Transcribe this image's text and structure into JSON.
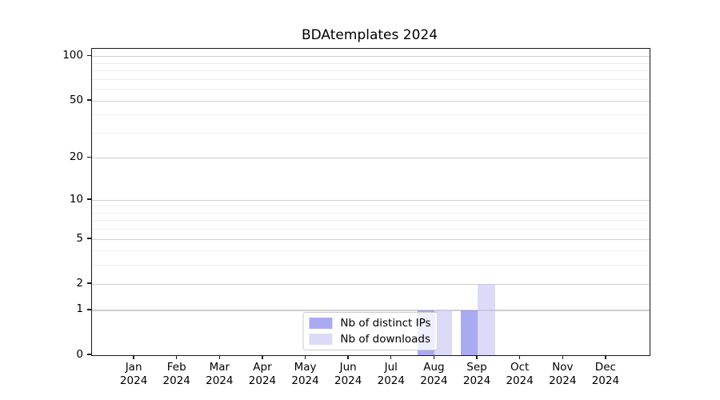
{
  "title": "BDAtemplates 2024",
  "chart_data": {
    "type": "bar",
    "title": "BDAtemplates 2024",
    "categories": [
      "Jan 2024",
      "Feb 2024",
      "Mar 2024",
      "Apr 2024",
      "May 2024",
      "Jun 2024",
      "Jul 2024",
      "Aug 2024",
      "Sep 2024",
      "Oct 2024",
      "Nov 2024",
      "Dec 2024"
    ],
    "x_tick_months": [
      "Jan",
      "Feb",
      "Mar",
      "Apr",
      "May",
      "Jun",
      "Jul",
      "Aug",
      "Sep",
      "Oct",
      "Nov",
      "Dec"
    ],
    "x_tick_year": "2024",
    "series": [
      {
        "name": "Nb of distinct IPs",
        "color": "rgba(129,129,238,0.68)",
        "values": [
          0,
          0,
          0,
          0,
          0,
          0,
          0,
          1,
          1,
          0,
          0,
          0
        ]
      },
      {
        "name": "Nb of downloads",
        "color": "rgba(197,197,244,0.62)",
        "values": [
          0,
          0,
          0,
          0,
          0,
          0,
          0,
          1,
          2,
          0,
          0,
          0
        ]
      }
    ],
    "y_ticks": [
      0,
      1,
      2,
      5,
      10,
      20,
      50,
      100
    ],
    "y_minor_gridlines": [
      3,
      4,
      6,
      7,
      8,
      9,
      30,
      40,
      60,
      70,
      80,
      90
    ],
    "y_scale": "symlog (log10(1+v))",
    "ylim": [
      0,
      113
    ],
    "grid": "horizontal",
    "legend_position": "lower center inside plot",
    "xlabel": "",
    "ylabel": ""
  },
  "legend": {
    "items": [
      {
        "label": "Nb of distinct IPs",
        "color": "rgba(129,129,238,0.68)"
      },
      {
        "label": "Nb of downloads",
        "color": "rgba(197,197,244,0.62)"
      }
    ]
  },
  "colors": {
    "distinct_ips_bar_hex": "#a9a9f2",
    "downloads_bar_hex": "#dcdcf8",
    "grid_major": "#cfcfcf",
    "grid_minor": "#ececec",
    "spine": "#1a1a1a",
    "background": "#ffffff"
  }
}
